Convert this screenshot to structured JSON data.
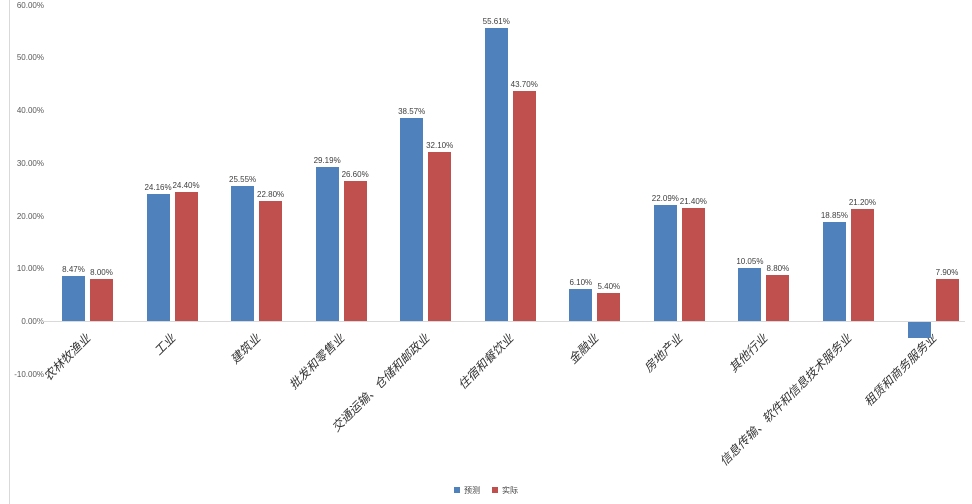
{
  "chart_data": {
    "type": "bar",
    "title": "",
    "xlabel": "",
    "ylabel": "",
    "categories": [
      "农林牧渔业",
      "工业",
      "建筑业",
      "批发和零售业",
      "交通运输、仓储和邮政业",
      "住宿和餐饮业",
      "金融业",
      "房地产业",
      "其他行业",
      "信息传输、软件和信息技术服务业",
      "租赁和商务服务业"
    ],
    "series": [
      {
        "name": "预测",
        "color": "#4F81BD",
        "values": [
          8.47,
          24.16,
          25.55,
          29.19,
          38.57,
          55.61,
          6.1,
          22.09,
          10.05,
          18.85,
          -3.0
        ],
        "labels": [
          "8.47%",
          "24.16%",
          "25.55%",
          "29.19%",
          "38.57%",
          "55.61%",
          "6.10%",
          "22.09%",
          "10.05%",
          "18.85%",
          ""
        ]
      },
      {
        "name": "实际",
        "color": "#C0504D",
        "values": [
          8.0,
          24.4,
          22.8,
          26.6,
          32.1,
          43.7,
          5.4,
          21.4,
          8.8,
          21.2,
          7.9
        ],
        "labels": [
          "8.00%",
          "24.40%",
          "22.80%",
          "26.60%",
          "32.10%",
          "43.70%",
          "5.40%",
          "21.40%",
          "8.80%",
          "21.20%",
          "7.90%"
        ]
      }
    ],
    "y_ticks": [
      "60.00%",
      "50.00%",
      "40.00%",
      "30.00%",
      "20.00%",
      "10.00%",
      "0.00%",
      "-10.00%"
    ],
    "ylim": [
      -10,
      60
    ],
    "grid": false,
    "legend_position": "bottom"
  }
}
